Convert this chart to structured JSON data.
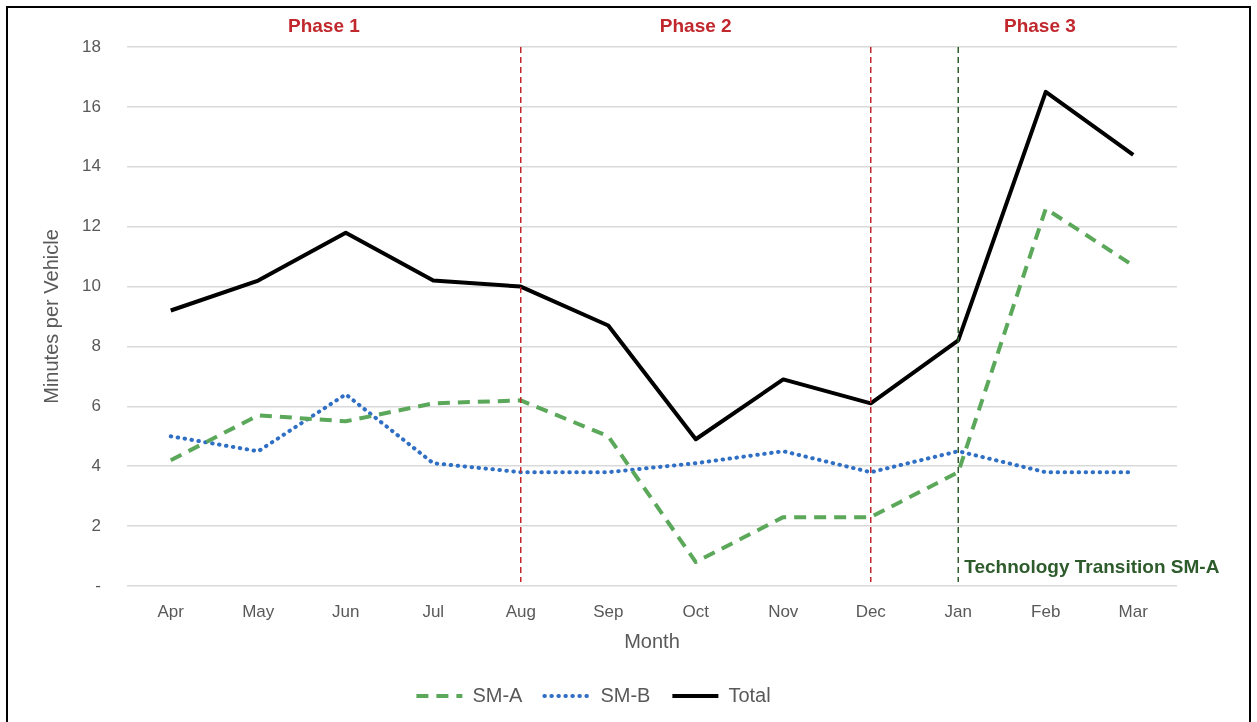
{
  "chart_data": {
    "type": "line",
    "xlabel": "Month",
    "ylabel": "Minutes per Vehicle",
    "categories": [
      "Apr",
      "May",
      "Jun",
      "Jul",
      "Aug",
      "Sep",
      "Oct",
      "Nov",
      "Dec",
      "Jan",
      "Feb",
      "Mar"
    ],
    "series": [
      {
        "name": "SM-A",
        "color": "#5ba85a",
        "line_style": "dashed",
        "values": [
          4.2,
          5.7,
          5.5,
          6.1,
          6.2,
          5.0,
          0.8,
          2.3,
          2.3,
          3.8,
          12.6,
          10.7
        ]
      },
      {
        "name": "SM-B",
        "color": "#2f6fc4",
        "line_style": "dotted",
        "values": [
          5.0,
          4.5,
          6.4,
          4.1,
          3.8,
          3.8,
          4.1,
          4.5,
          3.8,
          4.5,
          3.8,
          3.8
        ]
      },
      {
        "name": "Total",
        "color": "#000000",
        "line_style": "solid",
        "values": [
          9.2,
          10.2,
          11.8,
          10.2,
          10.0,
          8.7,
          4.9,
          6.9,
          6.1,
          8.2,
          16.5,
          14.4
        ]
      }
    ],
    "ylim": [
      0,
      18
    ],
    "yticks": [
      {
        "value": 0,
        "label": "-"
      },
      2,
      4,
      6,
      8,
      10,
      12,
      14,
      16,
      18
    ],
    "grid": "y",
    "legend": "bottom",
    "ref_lines": [
      {
        "axis": "x",
        "value": "Aug",
        "color": "#c0262b",
        "line_style": "dashed"
      },
      {
        "axis": "x",
        "value": "Dec",
        "color": "#c0262b",
        "line_style": "dashed"
      },
      {
        "axis": "x",
        "value": "Jan",
        "color": "#2e5b2c",
        "line_style": "dashed",
        "label": "Technology Transition SM-A"
      }
    ],
    "annotations": [
      "Phase 1",
      "Phase 2",
      "Phase 3"
    ]
  }
}
